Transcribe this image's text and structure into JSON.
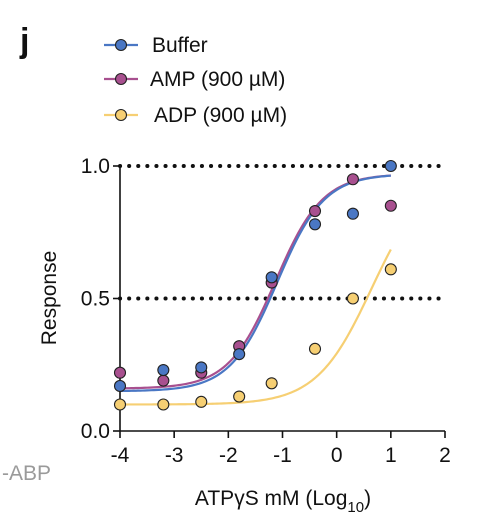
{
  "panel_letter": "j",
  "corner_label": "-ABP",
  "colors": {
    "Buffer": "#4a77c4",
    "AMP (900 µM)": "#a8508f",
    "ADP (900 µM)": "#f6cf73",
    "axis": "#111111",
    "marker_edge": "#222222"
  },
  "chart_data": {
    "type": "scatter",
    "title": "",
    "xlabel_main": "ATPγS mM (Log",
    "xlabel_sub": "10",
    "xlabel_end": ")",
    "ylabel": "Response",
    "xlim": [
      -4,
      2
    ],
    "ylim": [
      0,
      1
    ],
    "x_ticks": [
      -4,
      -3,
      -2,
      -1,
      0,
      1,
      2
    ],
    "x_tick_labels": [
      "-4",
      "-3",
      "-2",
      "-1",
      "0",
      "1",
      "2"
    ],
    "y_ticks": [
      0,
      0.5,
      1
    ],
    "y_tick_labels": [
      "0.0",
      "0.5",
      "1.0"
    ],
    "reference_lines": [
      0.5,
      1.0
    ],
    "legend_position": "top",
    "series": [
      {
        "name": "Buffer",
        "x": [
          -4,
          -3.2,
          -2.5,
          -1.8,
          -1.2,
          -0.4,
          0.3,
          1
        ],
        "y": [
          0.17,
          0.23,
          0.24,
          0.29,
          0.58,
          0.78,
          0.82,
          1.0
        ],
        "fit": {
          "bottom": 0.15,
          "top": 0.97,
          "logEC50": -1.1,
          "hill": 1.0
        }
      },
      {
        "name": "AMP (900 µM)",
        "x": [
          -4,
          -3.2,
          -2.5,
          -1.8,
          -1.2,
          -0.4,
          0.3,
          1
        ],
        "y": [
          0.22,
          0.19,
          0.22,
          0.32,
          0.56,
          0.83,
          0.95,
          0.85
        ],
        "fit": {
          "bottom": 0.16,
          "top": 0.97,
          "logEC50": -1.13,
          "hill": 1.0
        }
      },
      {
        "name": "ADP (900 µM)",
        "x": [
          -4,
          -3.2,
          -2.5,
          -1.8,
          -1.2,
          -0.4,
          0.3,
          1
        ],
        "y": [
          0.1,
          0.1,
          0.11,
          0.13,
          0.18,
          0.31,
          0.5,
          0.61
        ],
        "fit": {
          "bottom": 0.1,
          "top": 0.98,
          "logEC50": 0.65,
          "hill": 0.85
        }
      }
    ]
  }
}
